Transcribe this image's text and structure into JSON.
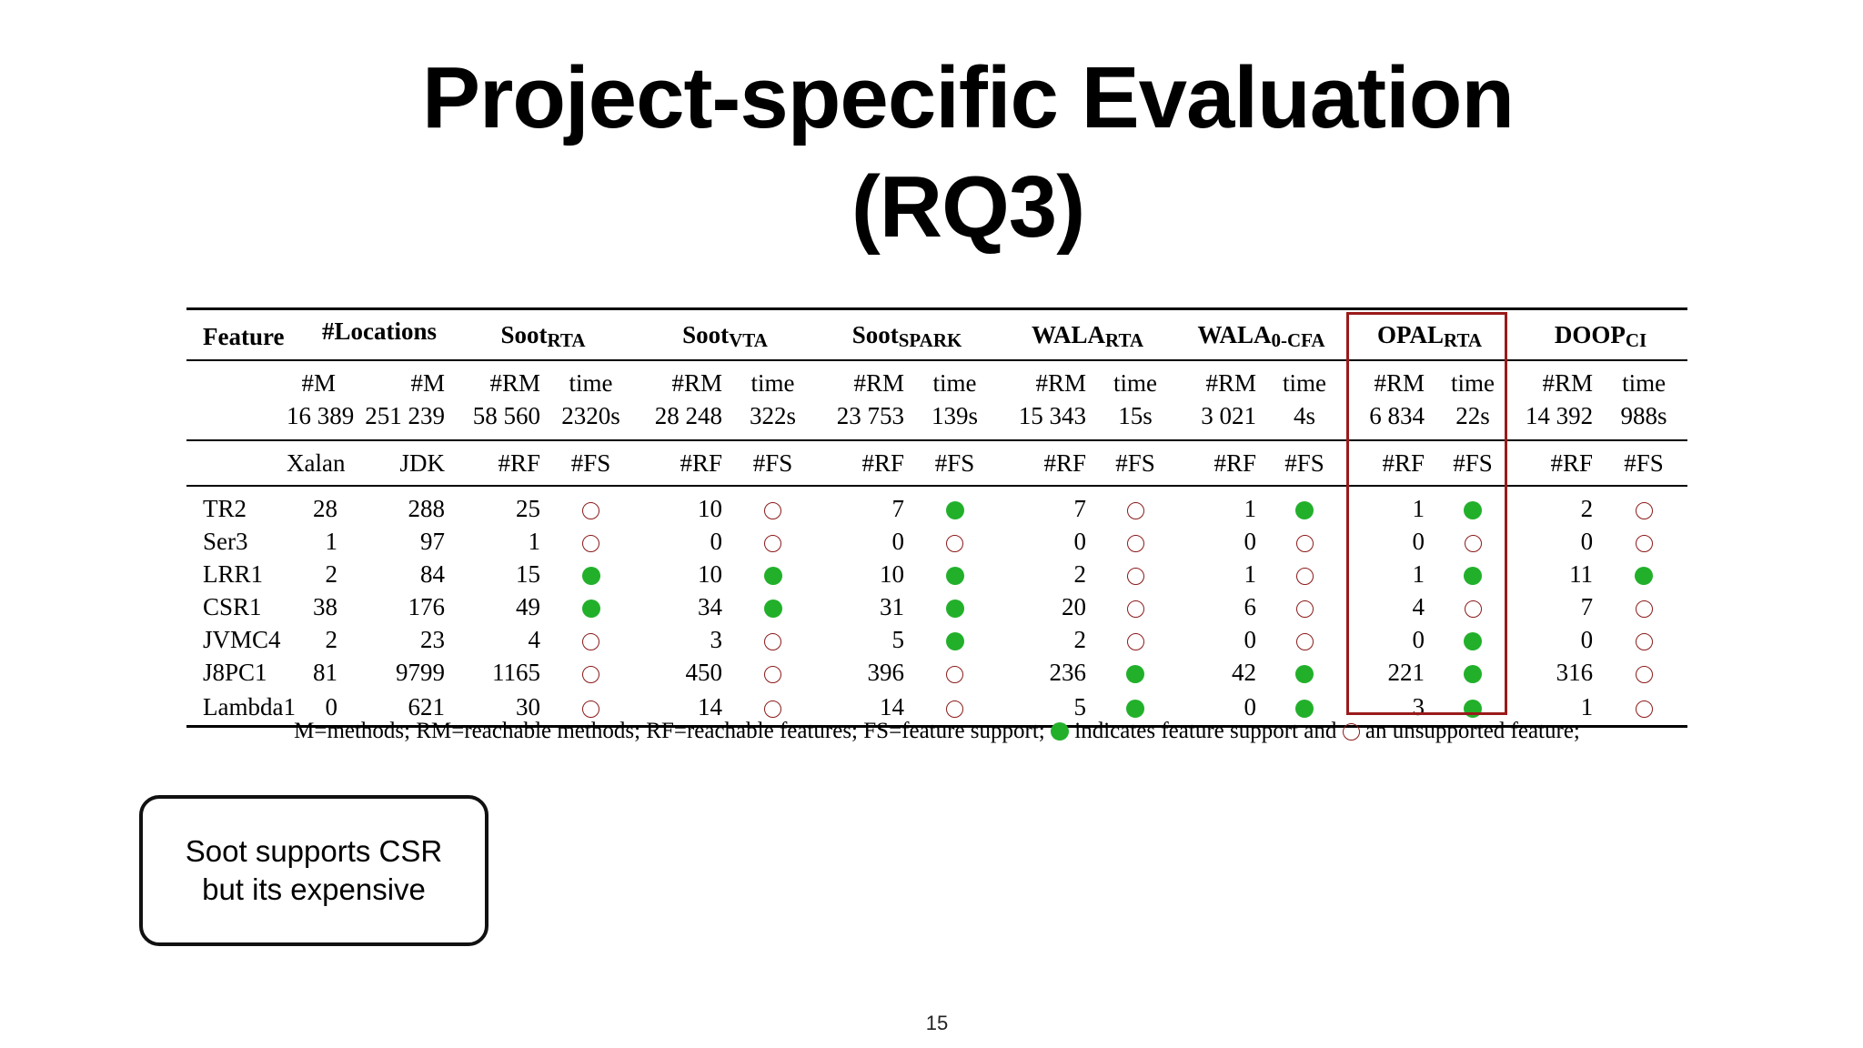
{
  "slide": {
    "title_line1": "Project-specific Evaluation",
    "title_line2": "(RQ3)",
    "page_number": "15"
  },
  "table": {
    "header": {
      "feature": "Feature",
      "locations": "#Locations",
      "groups": [
        {
          "name": "Soot",
          "sub": "RTA"
        },
        {
          "name": "Soot",
          "sub": "VTA"
        },
        {
          "name": "Soot",
          "sub": "SPARK"
        },
        {
          "name": "WALA",
          "sub": "RTA"
        },
        {
          "name": "WALA",
          "sub": "0-CFA"
        },
        {
          "name": "OPAL",
          "sub": "RTA"
        },
        {
          "name": "DOOP",
          "sub": "CI"
        }
      ]
    },
    "stats_row1": [
      "#M",
      "#M",
      "#RM",
      "time",
      "#RM",
      "time",
      "#RM",
      "time",
      "#RM",
      "time",
      "#RM",
      "time",
      "#RM",
      "time",
      "#RM",
      "time"
    ],
    "stats_row2": [
      "16 389",
      "251 239",
      "58 560",
      "2320s",
      "28 248",
      "322s",
      "23 753",
      "139s",
      "15 343",
      "15s",
      "3 021",
      "4s",
      "6 834",
      "22s",
      "14 392",
      "988s"
    ],
    "col_header": [
      "Xalan",
      "JDK",
      "#RF",
      "#FS",
      "#RF",
      "#FS",
      "#RF",
      "#FS",
      "#RF",
      "#FS",
      "#RF",
      "#FS",
      "#RF",
      "#FS",
      "#RF",
      "#FS"
    ],
    "rows": [
      {
        "name": "TR2",
        "xalan": "28",
        "jdk": "288",
        "rf": [
          "25",
          "10",
          "7",
          "7",
          "1",
          "1",
          "2"
        ],
        "fs": [
          0,
          0,
          1,
          0,
          1,
          1,
          0
        ]
      },
      {
        "name": "Ser3",
        "xalan": "1",
        "jdk": "97",
        "rf": [
          "1",
          "0",
          "0",
          "0",
          "0",
          "0",
          "0"
        ],
        "fs": [
          0,
          0,
          0,
          0,
          0,
          0,
          0
        ]
      },
      {
        "name": "LRR1",
        "xalan": "2",
        "jdk": "84",
        "rf": [
          "15",
          "10",
          "10",
          "2",
          "1",
          "1",
          "11"
        ],
        "fs": [
          1,
          1,
          1,
          0,
          0,
          1,
          1
        ]
      },
      {
        "name": "CSR1",
        "xalan": "38",
        "jdk": "176",
        "rf": [
          "49",
          "34",
          "31",
          "20",
          "6",
          "4",
          "7"
        ],
        "fs": [
          1,
          1,
          1,
          0,
          0,
          0,
          0
        ]
      },
      {
        "name": "JVMC4",
        "xalan": "2",
        "jdk": "23",
        "rf": [
          "4",
          "3",
          "5",
          "2",
          "0",
          "0",
          "0"
        ],
        "fs": [
          0,
          0,
          1,
          0,
          0,
          1,
          0
        ]
      },
      {
        "name": "J8PC1",
        "xalan": "81",
        "jdk": "9799",
        "rf": [
          "1165",
          "450",
          "396",
          "236",
          "42",
          "221",
          "316"
        ],
        "fs": [
          0,
          0,
          0,
          1,
          1,
          1,
          0
        ]
      },
      {
        "name": "Lambda1",
        "xalan": "0",
        "jdk": "621",
        "rf": [
          "30",
          "14",
          "14",
          "5",
          "0",
          "3",
          "1"
        ],
        "fs": [
          0,
          0,
          0,
          1,
          1,
          1,
          0
        ]
      }
    ],
    "caption_part1": "M=methods; RM=reachable methods; RF=reachable features; FS=feature support;",
    "caption_part2": "indicates feature support and",
    "caption_part3": "an unsupported feature;"
  },
  "note": {
    "line1": "Soot supports CSR",
    "line2": "but its expensive"
  },
  "colors": {
    "supported_dot": "#22b02b",
    "unsupported_ring": "#8b1a1a",
    "highlight_box": "#9a1b1b"
  }
}
